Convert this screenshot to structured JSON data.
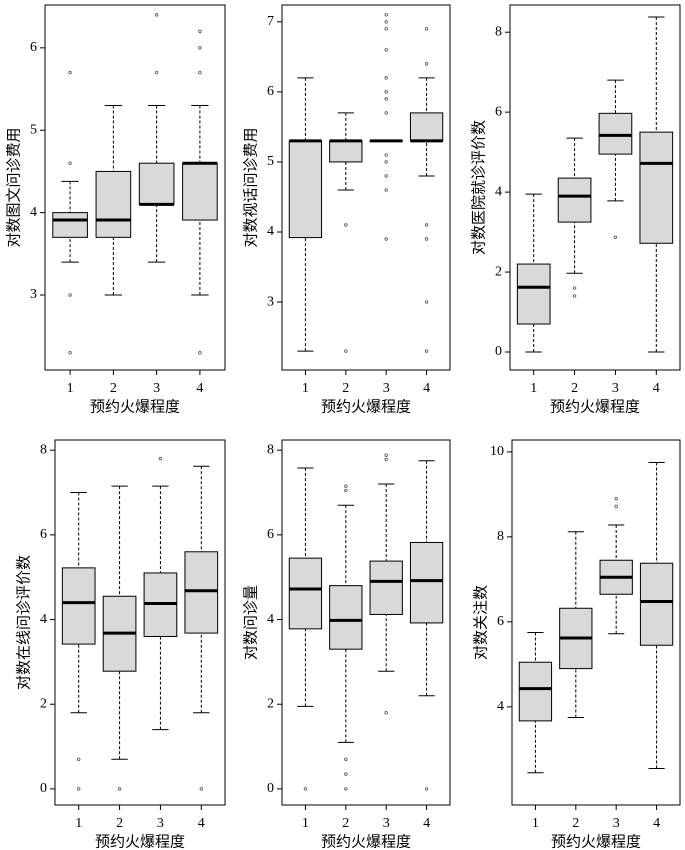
{
  "chart_data": [
    {
      "type": "box",
      "ylabel": "对数图文问诊费用",
      "xlabel": "预约火爆程度",
      "categories": [
        "1",
        "2",
        "3",
        "4"
      ],
      "ylim": [
        2.09,
        6.52
      ],
      "yticks": [
        3,
        4,
        5,
        6
      ],
      "color": "#d9d9d9",
      "boxes": [
        {
          "whislo": 3.4,
          "q1": 3.7,
          "med": 3.91,
          "q3": 4.0,
          "whishi": 4.38,
          "outliers": [
            5.7,
            4.6,
            3.0,
            2.3
          ]
        },
        {
          "whislo": 3.0,
          "q1": 3.7,
          "med": 3.91,
          "q3": 4.5,
          "whishi": 5.3,
          "outliers": []
        },
        {
          "whislo": 3.4,
          "q1": 4.1,
          "med": 4.1,
          "q3": 4.6,
          "whishi": 5.3,
          "outliers": [
            6.4,
            5.7
          ]
        },
        {
          "whislo": 3.0,
          "q1": 3.91,
          "med": 4.6,
          "q3": 4.6,
          "whishi": 5.3,
          "outliers": [
            6.2,
            6.0,
            5.7,
            2.3
          ]
        }
      ]
    },
    {
      "type": "box",
      "ylabel": "对数视话问诊费用",
      "xlabel": "预约火爆程度",
      "categories": [
        "1",
        "2",
        "3",
        "4"
      ],
      "ylim": [
        2.03,
        7.24
      ],
      "yticks": [
        3,
        4,
        5,
        6,
        7
      ],
      "color": "#d9d9d9",
      "boxes": [
        {
          "whislo": 2.3,
          "q1": 3.92,
          "med": 5.3,
          "q3": 5.3,
          "whishi": 6.2,
          "outliers": []
        },
        {
          "whislo": 4.6,
          "q1": 5.0,
          "med": 5.3,
          "q3": 5.3,
          "whishi": 5.7,
          "outliers": [
            4.1,
            2.3
          ]
        },
        {
          "whislo": 5.3,
          "q1": 5.3,
          "med": 5.3,
          "q3": 5.3,
          "whishi": 5.3,
          "outliers": [
            7.1,
            7.0,
            6.9,
            6.6,
            6.2,
            6.0,
            5.9,
            5.7,
            5.1,
            5.0,
            4.8,
            4.6,
            3.9
          ]
        },
        {
          "whislo": 4.8,
          "q1": 5.3,
          "med": 5.3,
          "q3": 5.7,
          "whishi": 6.2,
          "outliers": [
            6.9,
            6.4,
            4.1,
            3.9,
            3.0,
            2.3
          ]
        }
      ]
    },
    {
      "type": "box",
      "ylabel": "对数医院就诊评价数",
      "xlabel": "预约火爆程度",
      "categories": [
        "1",
        "2",
        "3",
        "4"
      ],
      "ylim": [
        -0.45,
        8.68
      ],
      "yticks": [
        0,
        2,
        4,
        6,
        8
      ],
      "color": "#d9d9d9",
      "boxes": [
        {
          "whislo": 0,
          "q1": 0.7,
          "med": 1.62,
          "q3": 2.2,
          "whishi": 3.95,
          "outliers": []
        },
        {
          "whislo": 1.97,
          "q1": 3.25,
          "med": 3.9,
          "q3": 4.35,
          "whishi": 5.35,
          "outliers": [
            1.6,
            1.4
          ]
        },
        {
          "whislo": 3.78,
          "q1": 4.95,
          "med": 5.42,
          "q3": 5.97,
          "whishi": 6.8,
          "outliers": [
            2.87
          ]
        },
        {
          "whislo": 0,
          "q1": 2.72,
          "med": 4.72,
          "q3": 5.5,
          "whishi": 8.38,
          "outliers": []
        }
      ]
    },
    {
      "type": "box",
      "ylabel": "对数在线问诊评价数",
      "xlabel": "预约火爆程度",
      "categories": [
        "1",
        "2",
        "3",
        "4"
      ],
      "ylim": [
        -0.38,
        8.24
      ],
      "yticks": [
        0,
        2,
        4,
        6,
        8
      ],
      "color": "#d9d9d9",
      "boxes": [
        {
          "whislo": 1.8,
          "q1": 3.42,
          "med": 4.4,
          "q3": 5.22,
          "whishi": 7.0,
          "outliers": [
            0.7,
            0
          ]
        },
        {
          "whislo": 0.7,
          "q1": 2.78,
          "med": 3.68,
          "q3": 4.55,
          "whishi": 7.15,
          "outliers": [
            0
          ]
        },
        {
          "whislo": 1.4,
          "q1": 3.6,
          "med": 4.38,
          "q3": 5.1,
          "whishi": 7.15,
          "outliers": [
            7.8
          ]
        },
        {
          "whislo": 1.8,
          "q1": 3.68,
          "med": 4.68,
          "q3": 5.6,
          "whishi": 7.62,
          "outliers": [
            0
          ]
        }
      ]
    },
    {
      "type": "box",
      "ylabel": "对数问诊量",
      "xlabel": "预约火爆程度",
      "categories": [
        "1",
        "2",
        "3",
        "4"
      ],
      "ylim": [
        -0.38,
        8.24
      ],
      "yticks": [
        0,
        2,
        4,
        6,
        8
      ],
      "color": "#d9d9d9",
      "boxes": [
        {
          "whislo": 1.95,
          "q1": 3.78,
          "med": 4.72,
          "q3": 5.45,
          "whishi": 7.58,
          "outliers": [
            0
          ]
        },
        {
          "whislo": 1.1,
          "q1": 3.3,
          "med": 3.98,
          "q3": 4.8,
          "whishi": 6.7,
          "outliers": [
            7.15,
            7.05,
            0.7,
            0.35,
            0
          ]
        },
        {
          "whislo": 2.78,
          "q1": 4.12,
          "med": 4.9,
          "q3": 5.38,
          "whishi": 7.2,
          "outliers": [
            7.88,
            7.78,
            1.8
          ]
        },
        {
          "whislo": 2.2,
          "q1": 3.92,
          "med": 4.92,
          "q3": 5.82,
          "whishi": 7.75,
          "outliers": [
            0
          ]
        }
      ]
    },
    {
      "type": "box",
      "ylabel": "对数关注数",
      "xlabel": "预约火爆程度",
      "categories": [
        "1",
        "2",
        "3",
        "4"
      ],
      "ylim": [
        1.69,
        10.28
      ],
      "yticks": [
        4,
        6,
        8,
        10
      ],
      "color": "#d9d9d9",
      "boxes": [
        {
          "whislo": 2.45,
          "q1": 3.67,
          "med": 4.43,
          "q3": 5.05,
          "whishi": 5.75,
          "outliers": []
        },
        {
          "whislo": 3.75,
          "q1": 4.9,
          "med": 5.62,
          "q3": 6.32,
          "whishi": 8.12,
          "outliers": []
        },
        {
          "whislo": 5.72,
          "q1": 6.65,
          "med": 7.05,
          "q3": 7.45,
          "whishi": 8.28,
          "outliers": [
            8.9,
            8.72
          ]
        },
        {
          "whislo": 2.55,
          "q1": 5.45,
          "med": 6.48,
          "q3": 7.38,
          "whishi": 9.75,
          "outliers": []
        }
      ]
    }
  ]
}
